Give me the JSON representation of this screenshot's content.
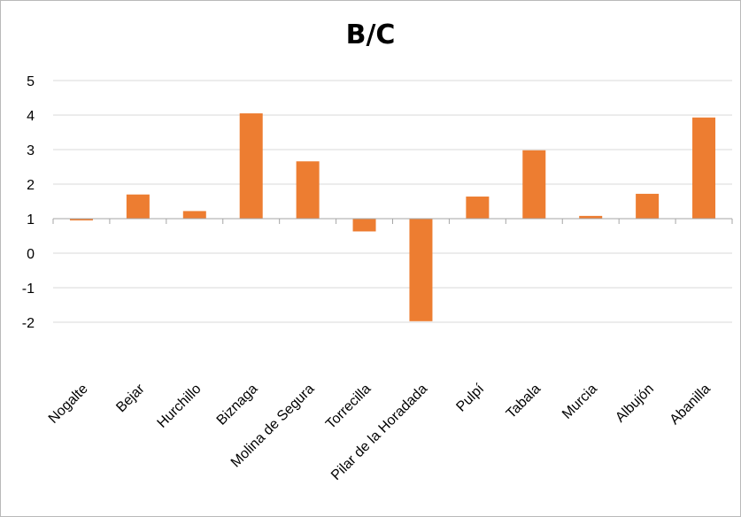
{
  "chart_data": {
    "type": "bar",
    "title": "B/C",
    "categories": [
      "Nogalte",
      "Bejar",
      "Hurchillo",
      "Biznaga",
      "Molina de Segura",
      "Torrecilla",
      "Pilar de la Horadada",
      "Pulpí",
      "Tabala",
      "Murcia",
      "Albujón",
      "Abanilla"
    ],
    "values": [
      0.95,
      1.7,
      1.22,
      4.05,
      2.66,
      0.63,
      -1.97,
      1.64,
      2.98,
      1.08,
      1.72,
      3.93
    ],
    "baseline": 1,
    "ylim": [
      -2,
      5
    ],
    "yticks": [
      5,
      4,
      3,
      2,
      1,
      0,
      -1,
      -2
    ],
    "grid": true,
    "legend": "none",
    "xlabel": "",
    "ylabel": "",
    "bar_color": "#ED7D31",
    "grid_color": "#D9D9D9"
  }
}
